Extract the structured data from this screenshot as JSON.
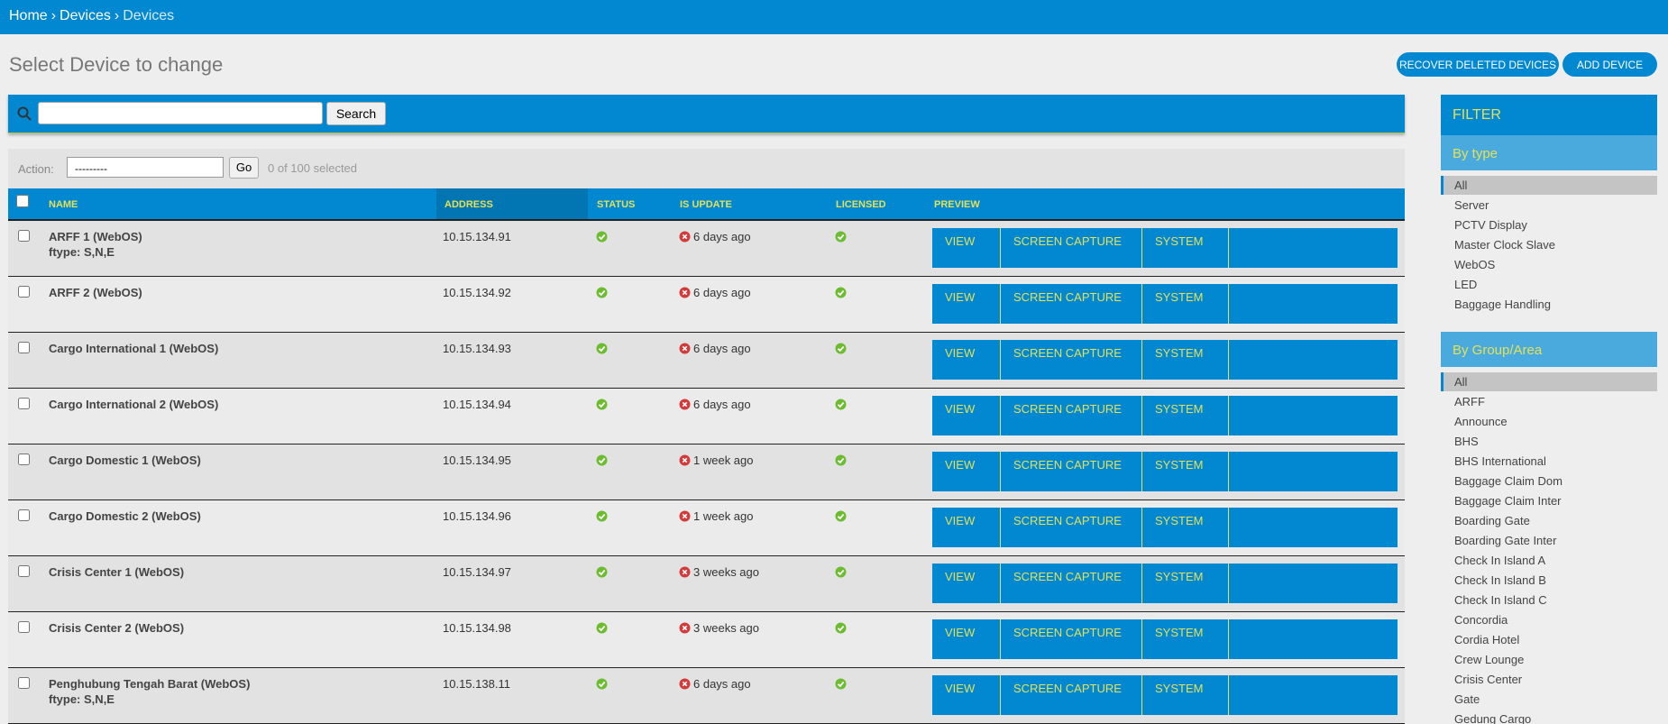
{
  "breadcrumb": {
    "items": [
      "Home",
      "Devices",
      "Devices"
    ],
    "separator": "›"
  },
  "title": "Select Device to change",
  "buttons": [
    "RECOVER DELETED DEVICES",
    "ADD DEVICE"
  ],
  "search": {
    "button": "Search"
  },
  "actions": {
    "label": "Action:",
    "select": "---------",
    "go": "Go",
    "selected": "0 of 100 selected"
  },
  "table": {
    "columns": [
      "NAME",
      "ADDRESS",
      "STATUS",
      "IS UPDATE",
      "LICENSED",
      "PREVIEW"
    ],
    "preview_buttons": [
      "VIEW",
      "SCREEN CAPTURE",
      "SYSTEM"
    ],
    "rows": [
      {
        "name": "ARFF 1 (WebOS)",
        "ftype": "ftype: S,N,E",
        "address": "10.15.134.91",
        "update": "6 days ago"
      },
      {
        "name": "ARFF 2 (WebOS)",
        "address": "10.15.134.92",
        "update": "6 days ago"
      },
      {
        "name": "Cargo International 1 (WebOS)",
        "address": "10.15.134.93",
        "update": "6 days ago"
      },
      {
        "name": "Cargo International 2 (WebOS)",
        "address": "10.15.134.94",
        "update": "6 days ago"
      },
      {
        "name": "Cargo Domestic 1 (WebOS)",
        "address": "10.15.134.95",
        "update": "1 week ago"
      },
      {
        "name": "Cargo Domestic 2 (WebOS)",
        "address": "10.15.134.96",
        "update": "1 week ago"
      },
      {
        "name": "Crisis Center 1 (WebOS)",
        "address": "10.15.134.97",
        "update": "3 weeks ago"
      },
      {
        "name": "Crisis Center 2 (WebOS)",
        "address": "10.15.134.98",
        "update": "3 weeks ago"
      },
      {
        "name": "Penghubung Tengah Barat (WebOS)",
        "ftype": "ftype: S,N,E",
        "address": "10.15.138.11",
        "update": "6 days ago"
      }
    ]
  },
  "filter": {
    "title": "FILTER",
    "groups": [
      {
        "title": "By type",
        "items": [
          "All",
          "Server",
          "PCTV Display",
          "Master Clock Slave",
          "WebOS",
          "LED",
          "Baggage Handling"
        ]
      },
      {
        "title": "By Group/Area",
        "items": [
          "All",
          "ARFF",
          "Announce",
          "BHS",
          "BHS International",
          "Baggage Claim Dom",
          "Baggage Claim Inter",
          "Boarding Gate",
          "Boarding Gate Inter",
          "Check In Island A",
          "Check In Island B",
          "Check In Island C",
          "Concordia",
          "Cordia Hotel",
          "Crew Lounge",
          "Crisis Center",
          "Gate",
          "Gedung Cargo"
        ]
      }
    ]
  }
}
